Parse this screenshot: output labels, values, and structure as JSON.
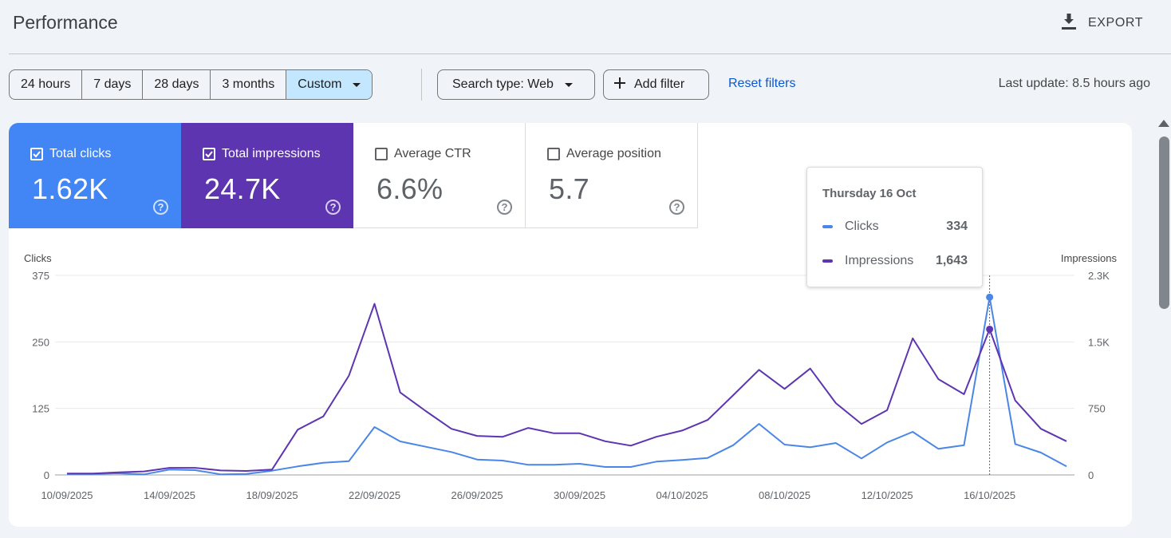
{
  "header": {
    "title": "Performance",
    "export_label": "EXPORT"
  },
  "filters": {
    "ranges": [
      {
        "label": "24 hours",
        "selected": false
      },
      {
        "label": "7 days",
        "selected": false
      },
      {
        "label": "28 days",
        "selected": false
      },
      {
        "label": "3 months",
        "selected": false
      },
      {
        "label": "Custom",
        "selected": true
      }
    ],
    "search_type": "Search type: Web",
    "add_filter": "Add filter",
    "reset": "Reset filters",
    "last_update": "Last update: 8.5 hours ago"
  },
  "metrics": [
    {
      "label": "Total clicks",
      "value": "1.62K",
      "checked": true,
      "color": "#4285f4"
    },
    {
      "label": "Total impressions",
      "value": "24.7K",
      "checked": true,
      "color": "#5e35b1"
    },
    {
      "label": "Average CTR",
      "value": "6.6%",
      "checked": false
    },
    {
      "label": "Average position",
      "value": "5.7",
      "checked": false
    }
  ],
  "tooltip": {
    "date": "Thursday 16 Oct",
    "rows": [
      {
        "label": "Clicks",
        "value": "334",
        "color": "#4a86e8"
      },
      {
        "label": "Impressions",
        "value": "1,643",
        "color": "#5e35b1"
      }
    ]
  },
  "chart_data": {
    "type": "line",
    "title": "",
    "ylabel": "Clicks",
    "y2label": "Impressions",
    "ylim": [
      0,
      375
    ],
    "y2lim": [
      0,
      2250
    ],
    "yticks": [
      "0",
      "125",
      "250",
      "375"
    ],
    "y2ticks": [
      "0",
      "750",
      "1.5K",
      "2.3K"
    ],
    "xtick_labels": [
      "10/09/2025",
      "14/09/2025",
      "18/09/2025",
      "22/09/2025",
      "26/09/2025",
      "30/09/2025",
      "04/10/2025",
      "08/10/2025",
      "12/10/2025",
      "16/10/2025"
    ],
    "x": [
      "10/09/2025",
      "11/09/2025",
      "12/09/2025",
      "13/09/2025",
      "14/09/2025",
      "15/09/2025",
      "16/09/2025",
      "17/09/2025",
      "18/09/2025",
      "19/09/2025",
      "20/09/2025",
      "21/09/2025",
      "22/09/2025",
      "23/09/2025",
      "24/09/2025",
      "25/09/2025",
      "26/09/2025",
      "27/09/2025",
      "28/09/2025",
      "29/09/2025",
      "30/09/2025",
      "01/10/2025",
      "02/10/2025",
      "03/10/2025",
      "04/10/2025",
      "05/10/2025",
      "06/10/2025",
      "07/10/2025",
      "08/10/2025",
      "09/10/2025",
      "10/10/2025",
      "11/10/2025",
      "12/10/2025",
      "13/10/2025",
      "14/10/2025",
      "15/10/2025",
      "16/10/2025",
      "17/10/2025",
      "18/10/2025",
      "19/10/2025"
    ],
    "series": [
      {
        "name": "Clicks",
        "axis": "left",
        "color": "#4a86e8",
        "values": [
          2,
          2,
          3,
          1,
          10,
          9,
          1,
          2,
          8,
          16,
          23,
          26,
          90,
          63,
          53,
          43,
          29,
          27,
          19,
          19,
          21,
          15,
          15,
          25,
          28,
          32,
          56,
          96,
          57,
          52,
          60,
          31,
          61,
          81,
          49,
          56,
          334,
          58,
          42,
          16
        ]
      },
      {
        "name": "Impressions",
        "axis": "right",
        "color": "#5e35b1",
        "values": [
          15,
          15,
          30,
          40,
          80,
          80,
          50,
          45,
          60,
          510,
          660,
          1120,
          1930,
          930,
          720,
          520,
          440,
          430,
          530,
          470,
          470,
          380,
          330,
          430,
          500,
          620,
          900,
          1185,
          970,
          1200,
          810,
          575,
          730,
          1540,
          1080,
          910,
          1643,
          840,
          520,
          380
        ]
      }
    ],
    "highlight_index": 36,
    "grid": true
  }
}
